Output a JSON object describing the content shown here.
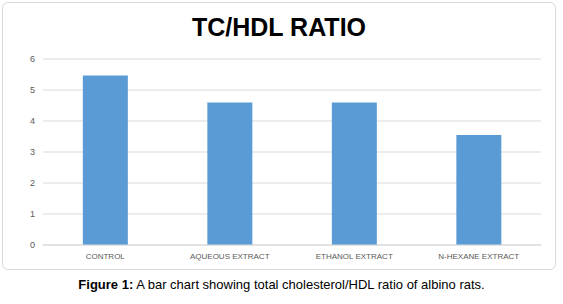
{
  "chart_data": {
    "type": "bar",
    "title": "TC/HDL RATIO",
    "categories": [
      "CONTROL",
      "AQUEOUS EXTRACT",
      "ETHANOL EXTRACT",
      "N-HEXANE EXTRACT"
    ],
    "values": [
      5.47,
      4.6,
      4.6,
      3.55
    ],
    "color": "#5b9bd5",
    "ylim": [
      0,
      6
    ],
    "yticks": [
      0,
      1,
      2,
      3,
      4,
      5,
      6
    ],
    "grid": true
  },
  "caption": {
    "label": "Figure 1:",
    "text": "A bar chart showing total cholesterol/HDL ratio of albino rats."
  }
}
